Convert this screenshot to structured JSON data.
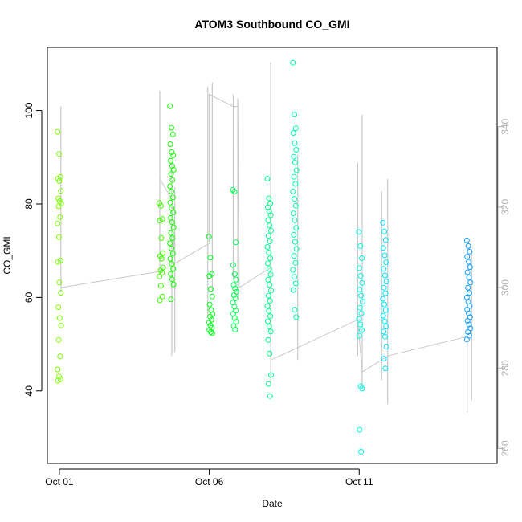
{
  "chart_data": {
    "type": "scatter",
    "title": "ATOM3 Southbound CO_GMI",
    "xlabel": "Date",
    "ylabel": "CO_GMI",
    "x_ticks": [
      {
        "day": 1,
        "label": "Oct 01"
      },
      {
        "day": 6,
        "label": "Oct 06"
      },
      {
        "day": 11,
        "label": "Oct 11"
      }
    ],
    "xlim_days": [
      0.6,
      15.6
    ],
    "ylim": [
      24.5,
      113.5
    ],
    "yticks": [
      40,
      60,
      80,
      100
    ],
    "y2lim": [
      256.3,
      359.7
    ],
    "y2ticks": [
      260,
      280,
      300,
      320,
      340
    ],
    "colors": {
      "axis": "#000000",
      "secondary_axis": "#b0b0b0",
      "line": "#c8c8c8"
    },
    "groups": [
      {
        "day": 1.0,
        "color": "#7fff00",
        "values": [
          95.4,
          90.7,
          85.8,
          85.4,
          84.9,
          82.8,
          81.2,
          80.6,
          80.1,
          79.5,
          77.2,
          75.8,
          72.9,
          67.9,
          67.6,
          63.2,
          61.0,
          57.9,
          55.6,
          54.0,
          50.9,
          47.4,
          44.6,
          43.1,
          42.5,
          42.2
        ]
      },
      {
        "day": 4.4,
        "color": "#3fff00",
        "values": [
          80.2,
          79.6,
          76.8,
          76.4,
          72.7,
          69.5,
          68.9,
          68.3,
          66.4,
          65.8,
          65.3,
          64.5,
          62.5,
          60.2,
          59.4
        ]
      },
      {
        "day": 4.75,
        "color": "#14ff00",
        "values": [
          100.9,
          96.3,
          94.9,
          92.8,
          91.1,
          90.4,
          89.2,
          88.1,
          87.3,
          86.4,
          85.1,
          83.8,
          82.7,
          81.4,
          80.3,
          79.1,
          78.2,
          77.0,
          76.1,
          75.0,
          73.8,
          72.7,
          71.6,
          70.5,
          69.4,
          68.3,
          67.2,
          66.1,
          65.0,
          63.9,
          62.8,
          59.6
        ]
      },
      {
        "day": 6.05,
        "color": "#00ff1a",
        "values": [
          73.0,
          68.5,
          65.0,
          64.6,
          61.8,
          60.2,
          58.5,
          57.3,
          56.4,
          55.9,
          55.2,
          54.6,
          54.0,
          53.5,
          53.0,
          52.6,
          52.3
        ]
      },
      {
        "day": 6.85,
        "color": "#00ff50",
        "values": [
          83.0,
          82.6,
          71.8,
          66.9,
          65.0,
          63.8,
          62.7,
          61.9,
          61.2,
          60.5,
          59.8,
          58.9,
          58.0,
          57.2,
          56.5,
          55.6,
          54.8,
          53.9,
          53.1
        ]
      },
      {
        "day": 8.0,
        "color": "#00ff90",
        "values": [
          85.4,
          81.2,
          80.1,
          79.3,
          78.4,
          77.6,
          76.5,
          75.4,
          74.3,
          73.2,
          72.0,
          70.8,
          69.6,
          68.4,
          67.3,
          66.1,
          64.9,
          63.8,
          62.7,
          61.5,
          60.4,
          59.3,
          58.2,
          57.1,
          56.0,
          54.9,
          53.8,
          52.7,
          50.9,
          48.0,
          43.4,
          41.5,
          38.9
        ]
      },
      {
        "day": 8.85,
        "color": "#00ffb0",
        "values": [
          110.2,
          99.1,
          96.2,
          95.2,
          93.0,
          91.6,
          90.1,
          88.9,
          87.2,
          85.8,
          84.3,
          82.7,
          81.1,
          79.6,
          78.0,
          76.5,
          74.9,
          73.4,
          71.9,
          70.4,
          68.9,
          67.4,
          65.9,
          64.4,
          63.0,
          61.6,
          57.4,
          55.8
        ]
      },
      {
        "day": 11.05,
        "color": "#00ffe6",
        "values": [
          74.0,
          71.0,
          68.4,
          66.3,
          64.6,
          63.1,
          61.7,
          60.4,
          59.1,
          57.8,
          56.6,
          55.4,
          54.2,
          53.0,
          51.8,
          41.0,
          40.5,
          31.7,
          27.0
        ]
      },
      {
        "day": 11.85,
        "color": "#00e5ff",
        "values": [
          76.0,
          74.1,
          72.3,
          70.6,
          69.0,
          67.5,
          66.1,
          64.7,
          63.4,
          62.1,
          60.9,
          59.7,
          58.5,
          57.3,
          56.1,
          54.9,
          53.8,
          52.7,
          51.6,
          49.5,
          46.9,
          44.8
        ]
      },
      {
        "day": 14.65,
        "color": "#10a0ff",
        "values": [
          72.2,
          71.0,
          69.8,
          68.7,
          67.6,
          66.5,
          65.4,
          64.3,
          63.2,
          62.1,
          61.0,
          60.0,
          59.1,
          58.2,
          57.4,
          56.6,
          55.8,
          55.0,
          54.2,
          53.4,
          52.6,
          51.8,
          51.0
        ]
      }
    ],
    "secondary_series": {
      "axis": "right",
      "vertical_spans": [
        {
          "day": 1.05,
          "y2_min": 299,
          "y2_max": 345
        },
        {
          "day": 4.35,
          "y2_min": 303,
          "y2_max": 349
        },
        {
          "day": 4.75,
          "y2_min": 283,
          "y2_max": 331
        },
        {
          "day": 4.85,
          "y2_min": 284,
          "y2_max": 325
        },
        {
          "day": 5.95,
          "y2_min": 293,
          "y2_max": 350
        },
        {
          "day": 6.1,
          "y2_min": 299,
          "y2_max": 351
        },
        {
          "day": 6.8,
          "y2_min": 302,
          "y2_max": 348
        },
        {
          "day": 6.95,
          "y2_min": 297,
          "y2_max": 347
        },
        {
          "day": 8.05,
          "y2_min": 276,
          "y2_max": 356
        },
        {
          "day": 8.95,
          "y2_min": 282,
          "y2_max": 333
        },
        {
          "day": 10.95,
          "y2_min": 283,
          "y2_max": 331
        },
        {
          "day": 11.1,
          "y2_min": 275,
          "y2_max": 343
        },
        {
          "day": 11.75,
          "y2_min": 277,
          "y2_max": 324
        },
        {
          "day": 11.95,
          "y2_min": 271,
          "y2_max": 327
        },
        {
          "day": 14.6,
          "y2_min": 269,
          "y2_max": 312
        },
        {
          "day": 14.75,
          "y2_min": 272,
          "y2_max": 309
        }
      ],
      "connector_path": [
        {
          "day": 1.05,
          "y2": 300
        },
        {
          "day": 4.35,
          "y2": 304
        },
        {
          "day": 4.35,
          "y2": 327
        },
        {
          "day": 4.75,
          "y2": 322
        },
        {
          "day": 4.85,
          "y2": 306
        },
        {
          "day": 6.0,
          "y2": 311
        },
        {
          "day": 6.0,
          "y2": 348
        },
        {
          "day": 6.8,
          "y2": 345
        },
        {
          "day": 6.95,
          "y2": 345
        },
        {
          "day": 7.0,
          "y2": 300
        },
        {
          "day": 8.05,
          "y2": 305
        },
        {
          "day": 8.05,
          "y2": 282
        },
        {
          "day": 10.95,
          "y2": 292
        },
        {
          "day": 11.1,
          "y2": 279
        },
        {
          "day": 11.95,
          "y2": 283
        },
        {
          "day": 14.7,
          "y2": 288
        }
      ]
    }
  }
}
